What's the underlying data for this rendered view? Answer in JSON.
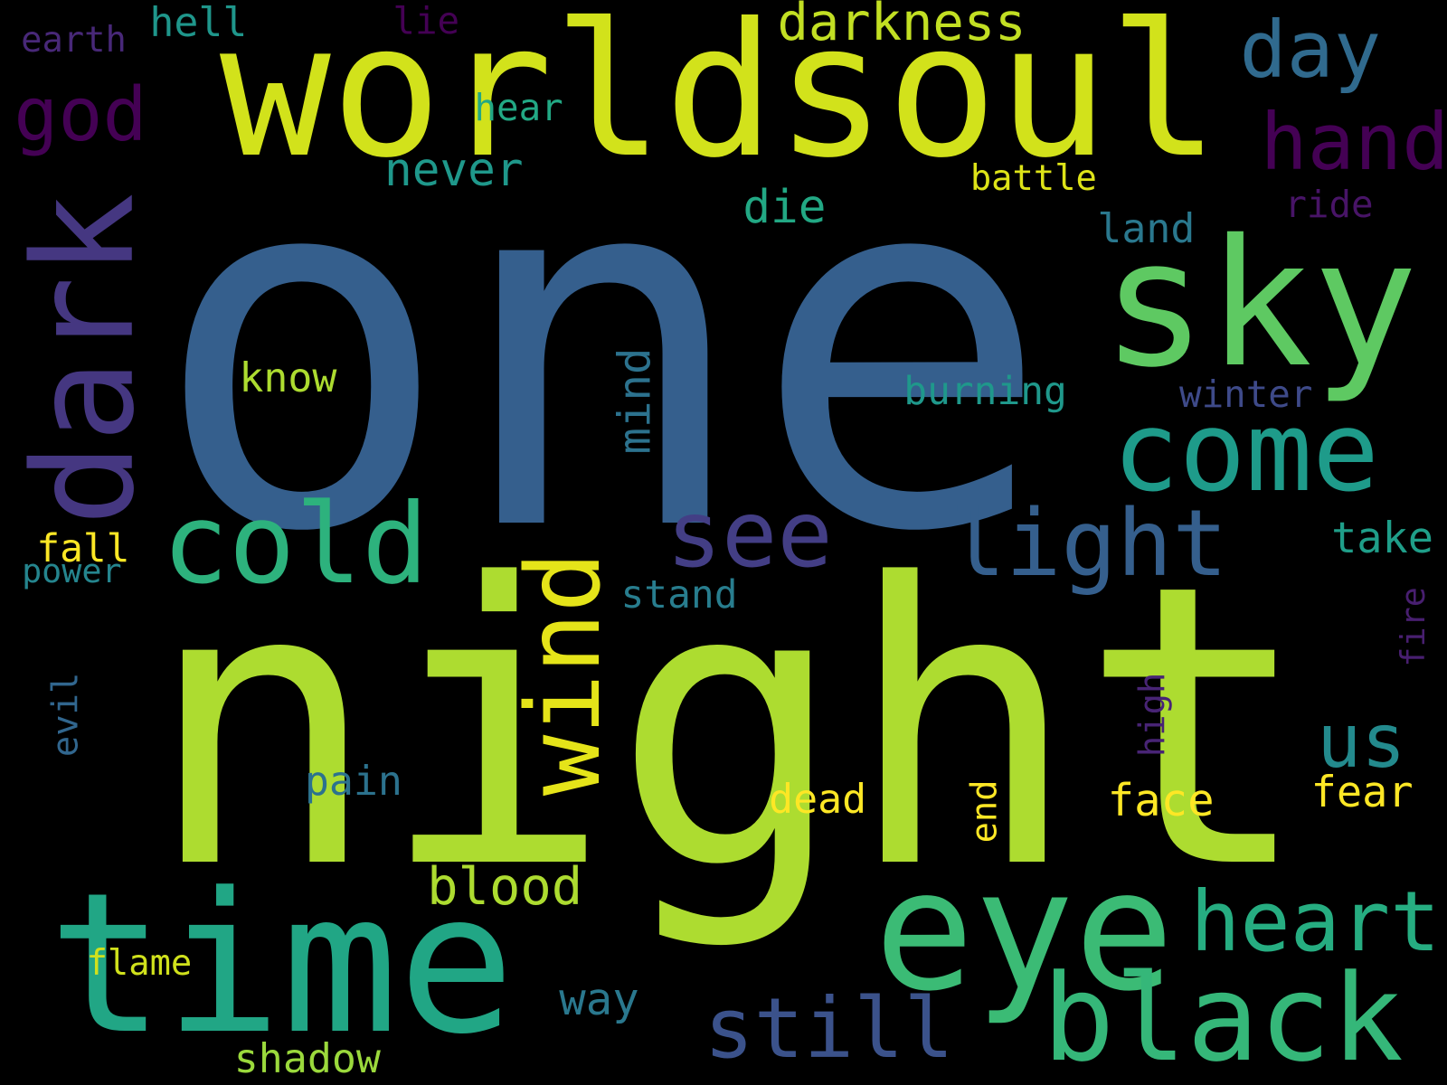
{
  "background": "#000000",
  "words": [
    {
      "text": "one",
      "color": "#355f8d",
      "rotated": false
    },
    {
      "text": "night",
      "color": "#addc30",
      "rotated": false
    },
    {
      "text": "worldsoul",
      "color": "#d2e21b",
      "rotated": false
    },
    {
      "text": "time",
      "color": "#21a685",
      "rotated": false
    },
    {
      "text": "sky",
      "color": "#5ec962",
      "rotated": false
    },
    {
      "text": "eye",
      "color": "#3bbb75",
      "rotated": false
    },
    {
      "text": "dark",
      "color": "#453781",
      "rotated": true
    },
    {
      "text": "come",
      "color": "#1e9b8a",
      "rotated": false
    },
    {
      "text": "black",
      "color": "#35b779",
      "rotated": false
    },
    {
      "text": "cold",
      "color": "#2db27d",
      "rotated": false
    },
    {
      "text": "wind",
      "color": "#e5e419",
      "rotated": true
    },
    {
      "text": "see",
      "color": "#433e85",
      "rotated": false
    },
    {
      "text": "light",
      "color": "#355f8d",
      "rotated": false
    },
    {
      "text": "heart",
      "color": "#26ad81",
      "rotated": false
    },
    {
      "text": "still",
      "color": "#3b528b",
      "rotated": false
    },
    {
      "text": "day",
      "color": "#306a8e",
      "rotated": false
    },
    {
      "text": "hand",
      "color": "#440154",
      "rotated": false
    },
    {
      "text": "god",
      "color": "#440154",
      "rotated": false
    },
    {
      "text": "us",
      "color": "#238a8d",
      "rotated": false
    },
    {
      "text": "darkness",
      "color": "#c2df23",
      "rotated": false
    },
    {
      "text": "blood",
      "color": "#addc30",
      "rotated": false
    },
    {
      "text": "mind",
      "color": "#2c728e",
      "rotated": true
    },
    {
      "text": "never",
      "color": "#1f988b",
      "rotated": false
    },
    {
      "text": "face",
      "color": "#fde725",
      "rotated": false
    },
    {
      "text": "fear",
      "color": "#fde725",
      "rotated": false
    },
    {
      "text": "die",
      "color": "#22a884",
      "rotated": false
    },
    {
      "text": "take",
      "color": "#1f9e89",
      "rotated": false
    },
    {
      "text": "know",
      "color": "#addc30",
      "rotated": false
    },
    {
      "text": "burning",
      "color": "#1f988b",
      "rotated": false
    },
    {
      "text": "way",
      "color": "#2a788e",
      "rotated": false
    },
    {
      "text": "shadow",
      "color": "#9bd93c",
      "rotated": false
    },
    {
      "text": "dead",
      "color": "#fde725",
      "rotated": false
    },
    {
      "text": "pain",
      "color": "#2c728e",
      "rotated": false
    },
    {
      "text": "stand",
      "color": "#287d8e",
      "rotated": false
    },
    {
      "text": "hell",
      "color": "#1f968b",
      "rotated": false
    },
    {
      "text": "hear",
      "color": "#22a884",
      "rotated": false
    },
    {
      "text": "land",
      "color": "#2a788e",
      "rotated": false
    },
    {
      "text": "winter",
      "color": "#3e4a89",
      "rotated": false
    },
    {
      "text": "battle",
      "color": "#dde318",
      "rotated": false
    },
    {
      "text": "fall",
      "color": "#fde725",
      "rotated": false
    },
    {
      "text": "flame",
      "color": "#d0e11c",
      "rotated": false
    },
    {
      "text": "ride",
      "color": "#481467",
      "rotated": false
    },
    {
      "text": "end",
      "color": "#fde725",
      "rotated": true
    },
    {
      "text": "evil",
      "color": "#31668e",
      "rotated": true
    },
    {
      "text": "high",
      "color": "#482475",
      "rotated": true
    },
    {
      "text": "power",
      "color": "#25858e",
      "rotated": false
    },
    {
      "text": "lie",
      "color": "#440154",
      "rotated": false
    },
    {
      "text": "earth",
      "color": "#482878",
      "rotated": false
    },
    {
      "text": "fire",
      "color": "#481f70",
      "rotated": true
    }
  ]
}
